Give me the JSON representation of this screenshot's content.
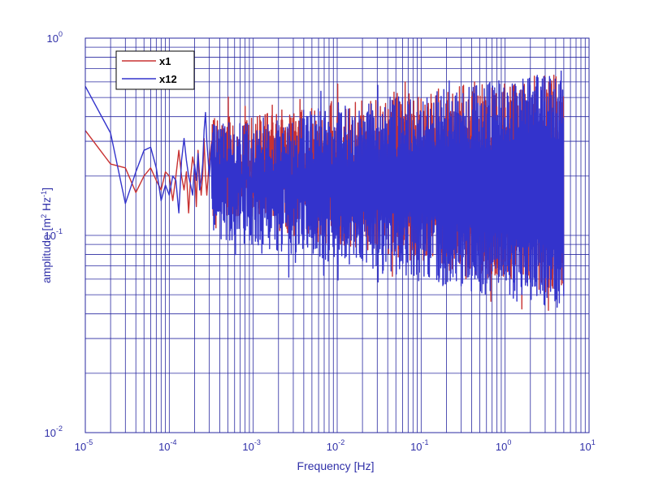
{
  "chart_data": {
    "type": "line",
    "xlabel": "Frequency  [Hz]",
    "ylabel": "amplitude  [m",
    "ylabel_parts": [
      "amplitude  [m",
      "2",
      " Hz",
      "-1",
      "]"
    ],
    "x_scale": "log",
    "y_scale": "log",
    "xlim": [
      1e-05,
      10
    ],
    "ylim": [
      0.01,
      1
    ],
    "x_ticks": [
      {
        "base": "10",
        "exp": "-5"
      },
      {
        "base": "10",
        "exp": "-4"
      },
      {
        "base": "10",
        "exp": "-3"
      },
      {
        "base": "10",
        "exp": "-2"
      },
      {
        "base": "10",
        "exp": "-1"
      },
      {
        "base": "10",
        "exp": "0"
      },
      {
        "base": "10",
        "exp": "1"
      }
    ],
    "y_ticks": [
      {
        "base": "10",
        "exp": "-2"
      },
      {
        "base": "10",
        "exp": "-1"
      },
      {
        "base": "10",
        "exp": "0"
      }
    ],
    "grid": true,
    "legend_position": "top-left",
    "series": [
      {
        "name": "x1",
        "color": "#c83232",
        "points": [
          [
            1e-05,
            0.34
          ],
          [
            2e-05,
            0.23
          ],
          [
            3e-05,
            0.22
          ],
          [
            4e-05,
            0.165
          ],
          [
            5e-05,
            0.2
          ],
          [
            6e-05,
            0.22
          ],
          [
            7e-05,
            0.19
          ],
          [
            8e-05,
            0.17
          ],
          [
            9e-05,
            0.21
          ],
          [
            0.0001,
            0.2
          ],
          [
            0.00011,
            0.15
          ],
          [
            0.00012,
            0.2
          ],
          [
            0.00013,
            0.27
          ],
          [
            0.00014,
            0.2
          ],
          [
            0.00015,
            0.17
          ],
          [
            0.00016,
            0.21
          ],
          [
            0.00017,
            0.13
          ],
          [
            0.00018,
            0.2
          ],
          [
            0.00019,
            0.25
          ],
          [
            0.0002,
            0.22
          ],
          [
            0.00021,
            0.14
          ],
          [
            0.00022,
            0.27
          ],
          [
            0.00023,
            0.2
          ],
          [
            0.00024,
            0.16
          ],
          [
            0.00025,
            0.2
          ],
          [
            0.00026,
            0.31
          ],
          [
            0.00027,
            0.2
          ],
          [
            0.00028,
            0.16
          ],
          [
            0.0003,
            0.24
          ],
          [
            0.00032,
            0.3
          ]
        ],
        "noise": {
          "f_start": 0.00032,
          "f_end": 5,
          "upper_start": 0.32,
          "upper_end": 0.55,
          "lower_start": 0.15,
          "lower_end": 0.06,
          "upper_max": 0.6,
          "lower_min": 0.027
        }
      },
      {
        "name": "x12",
        "color": "#3333cc",
        "points": [
          [
            1e-05,
            0.57
          ],
          [
            2e-05,
            0.33
          ],
          [
            3e-05,
            0.145
          ],
          [
            4e-05,
            0.21
          ],
          [
            5e-05,
            0.27
          ],
          [
            6e-05,
            0.28
          ],
          [
            7e-05,
            0.22
          ],
          [
            8e-05,
            0.15
          ],
          [
            9e-05,
            0.18
          ],
          [
            0.0001,
            0.16
          ],
          [
            0.00011,
            0.2
          ],
          [
            0.00012,
            0.19
          ],
          [
            0.00013,
            0.13
          ],
          [
            0.00014,
            0.24
          ],
          [
            0.00015,
            0.31
          ],
          [
            0.00016,
            0.24
          ],
          [
            0.00017,
            0.2
          ],
          [
            0.00018,
            0.18
          ],
          [
            0.00019,
            0.16
          ],
          [
            0.0002,
            0.23
          ],
          [
            0.00021,
            0.19
          ],
          [
            0.00022,
            0.26
          ],
          [
            0.00023,
            0.17
          ],
          [
            0.00024,
            0.19
          ],
          [
            0.00025,
            0.23
          ],
          [
            0.00026,
            0.34
          ],
          [
            0.00027,
            0.42
          ],
          [
            0.00028,
            0.3
          ],
          [
            0.0003,
            0.2
          ],
          [
            0.00032,
            0.29
          ]
        ],
        "noise": {
          "f_start": 0.00032,
          "f_end": 5,
          "upper_start": 0.3,
          "upper_end": 0.56,
          "lower_start": 0.12,
          "lower_end": 0.05,
          "upper_max": 0.62,
          "lower_min": 0.033
        }
      }
    ]
  },
  "colors": {
    "grid": "#2828a0",
    "axis": "#2828a0",
    "text": "#2f2fa8",
    "background": "#ffffff"
  }
}
